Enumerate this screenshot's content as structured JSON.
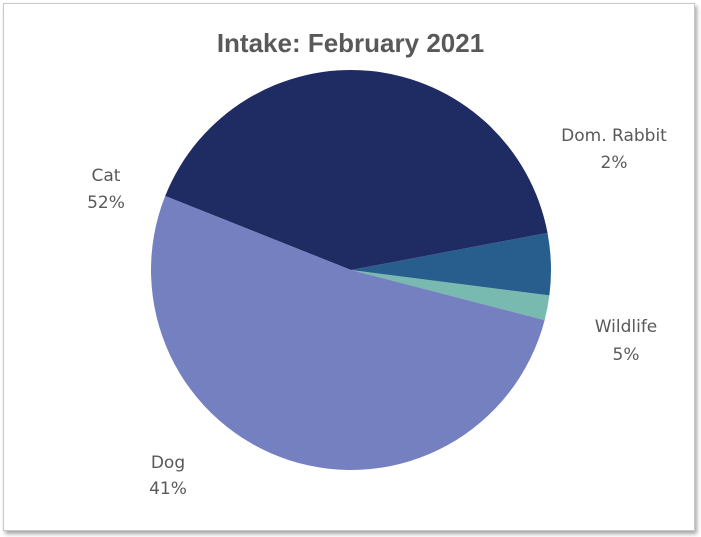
{
  "chart_data": {
    "type": "pie",
    "title": "Intake: February 2021",
    "slices": [
      {
        "label": "Dom. Rabbit",
        "value": 2,
        "pct_label": "2%",
        "color": "#78b9b0"
      },
      {
        "label": "Wildlife",
        "value": 5,
        "pct_label": "5%",
        "color": "#285e8e"
      },
      {
        "label": "Dog",
        "value": 41,
        "pct_label": "41%",
        "color": "#1f2b63"
      },
      {
        "label": "Cat",
        "value": 52,
        "pct_label": "52%",
        "color": "#7480bf"
      }
    ],
    "legend": "none",
    "data_labels": "outside"
  }
}
